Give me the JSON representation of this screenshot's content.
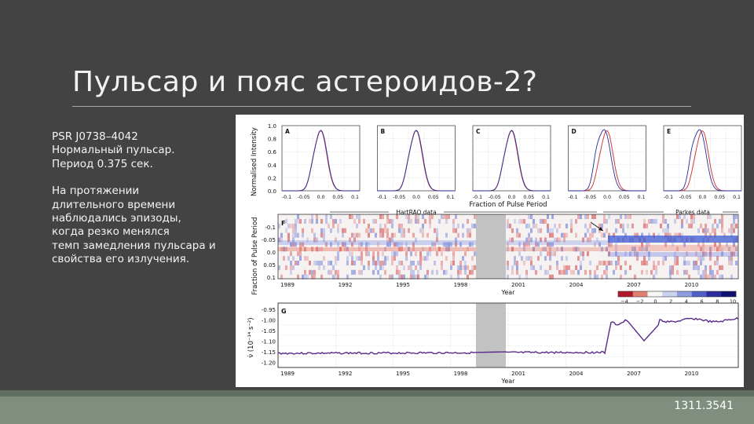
{
  "slide": {
    "title": "Пульсар и пояс астероидов-2?",
    "reference": "1311.3541"
  },
  "text": {
    "lines_block1": [
      "PSR J0738–4042",
      "Нормальный пульсар.",
      "Период 0.375 сек."
    ],
    "lines_block2": [
      "На протяжении",
      "длительного времени",
      "наблюдались эпизоды,",
      "когда резко менялся",
      "темп замедления пульсара и",
      "свойства его излучения."
    ]
  },
  "figure": {
    "profiles": {
      "ylabel": "Normalised Intensity",
      "xlabel": "Fraction of Pulse Period",
      "yticks": [
        "1.0",
        "0.8",
        "0.6",
        "0.4",
        "0.2",
        "0.0"
      ],
      "xticks": [
        "-0.1",
        "-0.05",
        "0.0",
        "0.05",
        "0.1"
      ],
      "panels": [
        "A",
        "B",
        "C",
        "D",
        "E"
      ]
    },
    "map": {
      "panel": "F",
      "ylabel": "Fraction of Pulse Period",
      "yticks": [
        "-0.1",
        "-0.05",
        "0.0",
        "0.05",
        "0.1"
      ],
      "xticks": [
        "1989",
        "1992",
        "1995",
        "1998",
        "2001",
        "2004",
        "2007",
        "2010"
      ],
      "xlabel": "Year",
      "label_hartrao": "HartRAO data",
      "label_parkes": "Parkes data",
      "colorbar_ticks": [
        "−4",
        "−2",
        "0",
        "2",
        "4",
        "6",
        "8",
        "10"
      ]
    },
    "spindown": {
      "panel": "G",
      "ylabel": "ν̇ (10⁻¹⁴ s⁻²)",
      "yticks": [
        "-0.95",
        "-1.00",
        "-1.05",
        "-1.10",
        "-1.15",
        "-1.20"
      ],
      "xticks": [
        "1989",
        "1992",
        "1995",
        "1998",
        "2001",
        "2004",
        "2007",
        "2010"
      ],
      "xlabel": "Year"
    }
  }
}
